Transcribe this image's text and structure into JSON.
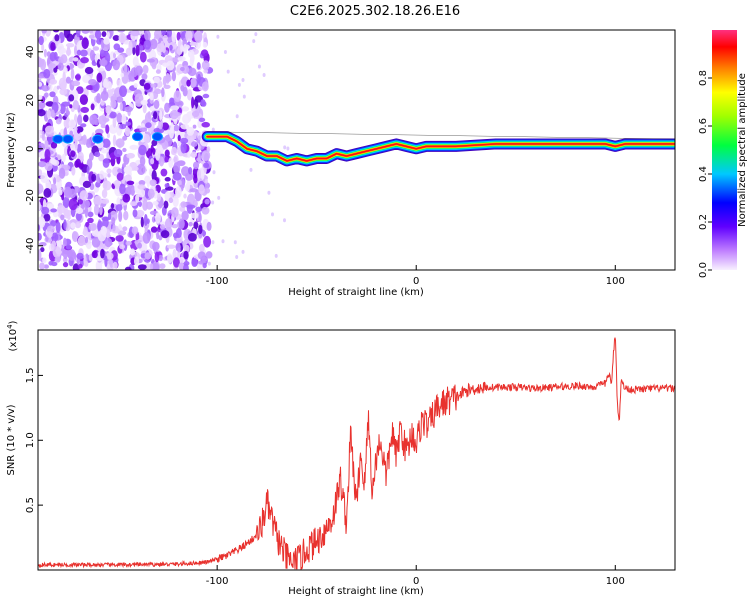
{
  "title": "C2E6.2025.302.18.26.E16",
  "chart_data": [
    {
      "type": "heatmap",
      "xlabel": "Height of straight line (km)",
      "ylabel": "Frequency (Hz)",
      "xlim": [
        -190,
        130
      ],
      "ylim": [
        -50,
        49
      ],
      "xticks": [
        -100,
        0,
        100
      ],
      "xtick_labels": [
        "-100",
        "0",
        "100"
      ],
      "yticks": [
        -40,
        -20,
        0,
        20,
        40
      ],
      "ytick_labels": [
        "-40",
        "-20",
        "0",
        "20",
        "40"
      ],
      "noise_region_x": [
        -190,
        -104
      ],
      "ridge_points": [
        [
          -105,
          5
        ],
        [
          -95,
          5
        ],
        [
          -90,
          3
        ],
        [
          -85,
          0
        ],
        [
          -80,
          -1
        ],
        [
          -75,
          -3
        ],
        [
          -70,
          -3
        ],
        [
          -65,
          -5
        ],
        [
          -60,
          -4
        ],
        [
          -55,
          -5
        ],
        [
          -50,
          -4
        ],
        [
          -45,
          -4
        ],
        [
          -40,
          -2
        ],
        [
          -35,
          -3
        ],
        [
          -30,
          -2
        ],
        [
          -25,
          -1
        ],
        [
          -20,
          0
        ],
        [
          -15,
          1
        ],
        [
          -10,
          2
        ],
        [
          -5,
          1
        ],
        [
          0,
          0
        ],
        [
          5,
          1
        ],
        [
          10,
          1
        ],
        [
          20,
          1
        ],
        [
          40,
          2
        ],
        [
          60,
          2
        ],
        [
          80,
          2
        ],
        [
          95,
          2
        ],
        [
          100,
          1
        ],
        [
          105,
          2
        ],
        [
          130,
          2
        ]
      ],
      "colorbar": {
        "label": "Normalized spectral amplitude",
        "range": [
          0,
          1
        ],
        "ticks": [
          0.0,
          0.2,
          0.4,
          0.6,
          0.8
        ],
        "tick_labels": [
          "0.0",
          "0.2",
          "0.4",
          "0.6",
          "0.8"
        ],
        "colors": [
          "#f8f0ff",
          "#8a00ff",
          "#0000ff",
          "#00e0ff",
          "#00ff00",
          "#ffff00",
          "#ff8000",
          "#ff0000",
          "#ff2080"
        ]
      }
    },
    {
      "type": "line",
      "xlabel": "Height of straight line (km)",
      "ylabel": "SNR (10 * v/v)",
      "y_multiplier": "(x10",
      "y_multiplier_exp": "4",
      "xlim": [
        -190,
        130
      ],
      "ylim": [
        0,
        18500
      ],
      "xticks": [
        -100,
        0,
        100
      ],
      "xtick_labels": [
        "-100",
        "0",
        "100"
      ],
      "yticks": [
        5000,
        10000,
        15000
      ],
      "ytick_labels": [
        "0.5",
        "1.0",
        "1.5"
      ],
      "line_color": "#e8322e",
      "series": [
        {
          "name": "SNR",
          "x": [
            -190,
            -150,
            -120,
            -105,
            -95,
            -88,
            -82,
            -78,
            -75,
            -72,
            -70,
            -68,
            -65,
            -62,
            -58,
            -55,
            -50,
            -45,
            -42,
            -40,
            -38,
            -35,
            -33,
            -30,
            -28,
            -26,
            -24,
            -22,
            -20,
            -18,
            -15,
            -12,
            -10,
            -8,
            -5,
            -2,
            0,
            3,
            6,
            10,
            15,
            20,
            25,
            30,
            40,
            50,
            60,
            70,
            80,
            90,
            95,
            97,
            98,
            99,
            100,
            101,
            102,
            103,
            105,
            110,
            120,
            130
          ],
          "y": [
            400,
            400,
            450,
            600,
            1100,
            1700,
            2400,
            3200,
            5200,
            3600,
            2600,
            1800,
            900,
            500,
            900,
            1600,
            2200,
            3200,
            4000,
            5500,
            7000,
            3600,
            10500,
            4800,
            9000,
            6500,
            11800,
            5800,
            8800,
            10000,
            7200,
            10700,
            8600,
            11000,
            9100,
            10600,
            9700,
            11600,
            11100,
            12400,
            13000,
            13300,
            13800,
            14000,
            14100,
            14100,
            14000,
            14100,
            14200,
            14100,
            14400,
            15200,
            14000,
            16500,
            18400,
            13000,
            11400,
            14600,
            14000,
            13900,
            14000,
            14000
          ]
        }
      ]
    }
  ]
}
